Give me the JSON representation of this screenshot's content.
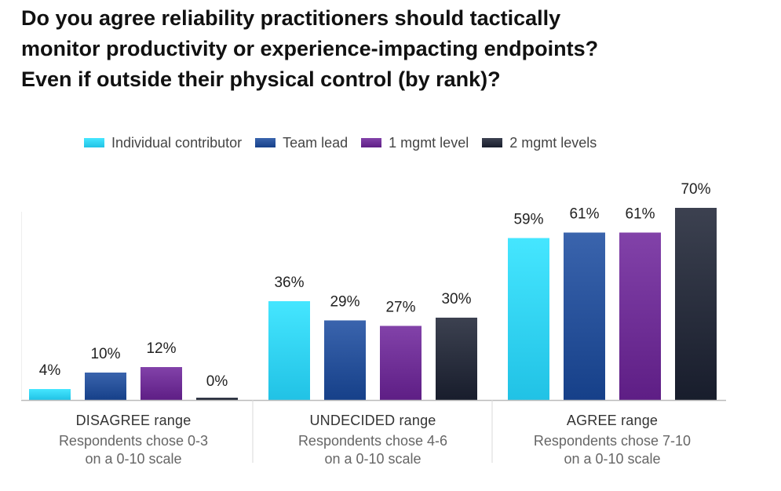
{
  "title_lines": [
    "Do you agree reliability practitioners should tactically",
    "monitor productivity or experience-impacting endpoints?",
    "Even if outside their physical control (by rank)?"
  ],
  "colors": {
    "Individual contributor": "#2fd0f3",
    "Team lead": "#244e97",
    "1 mgmt level": "#6c2c93",
    "2 mgmt levels": "#262b3a"
  },
  "chart_data": {
    "type": "bar",
    "title": "Do you agree reliability practitioners should tactically monitor productivity or experience-impacting endpoints? Even if outside their physical control (by rank)?",
    "categories": [
      "DISAGREE range",
      "UNDECIDED range",
      "AGREE range"
    ],
    "category_notes": [
      [
        "Respondents chose 0-3",
        "on a 0-10 scale"
      ],
      [
        "Respondents chose 4-6",
        "on a 0-10 scale"
      ],
      [
        "Respondents chose 7-10",
        "on a 0-10 scale"
      ]
    ],
    "series": [
      {
        "name": "Individual contributor",
        "values": [
          4,
          36,
          59
        ]
      },
      {
        "name": "Team lead",
        "values": [
          10,
          29,
          61
        ]
      },
      {
        "name": "1 mgmt level",
        "values": [
          12,
          27,
          61
        ]
      },
      {
        "name": "2 mgmt levels",
        "values": [
          0,
          30,
          70
        ]
      }
    ],
    "value_suffix": "%",
    "ylim": [
      0,
      100
    ],
    "xlabel": "",
    "ylabel": "",
    "legend_position": "top",
    "grid": false
  }
}
